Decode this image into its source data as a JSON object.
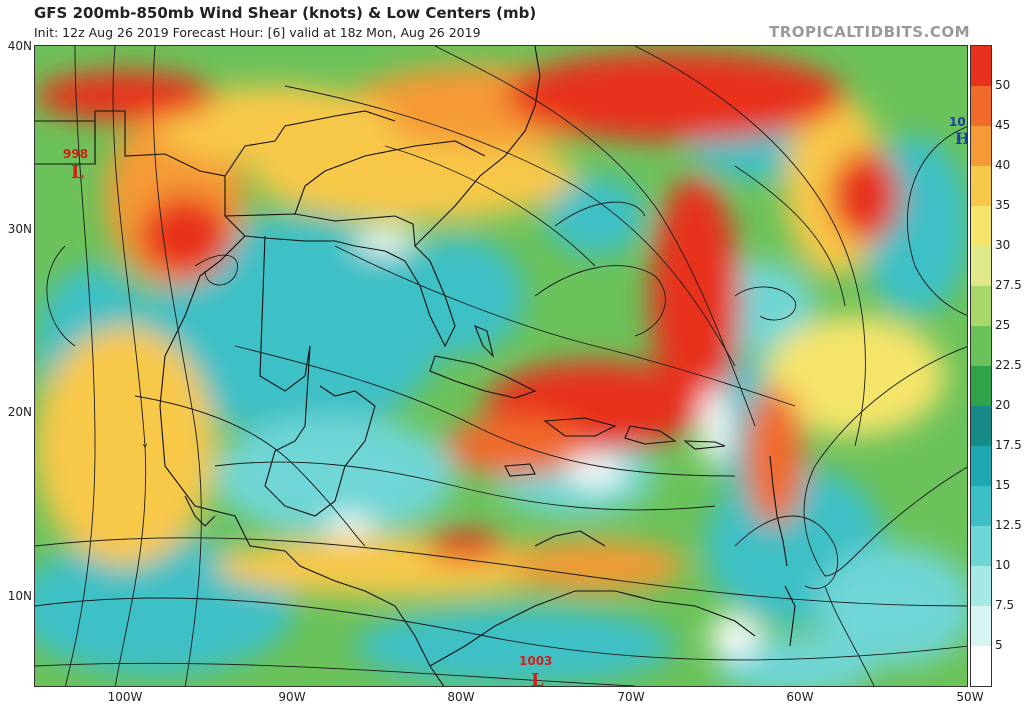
{
  "header": {
    "title": "GFS 200mb-850mb Wind Shear (knots) & Low Centers (mb)",
    "subtitle": "Init: 12z Aug 26 2019   Forecast Hour: [6]   valid at 18z Mon, Aug 26 2019",
    "brand": "TROPICALTIDBITS.COM"
  },
  "axes": {
    "lat_labels": [
      "40N",
      "30N",
      "20N",
      "10N"
    ],
    "lon_labels": [
      "100W",
      "90W",
      "80W",
      "70W",
      "60W",
      "50W"
    ]
  },
  "colorbar": {
    "labels": [
      "50",
      "45",
      "40",
      "35",
      "30",
      "27.5",
      "25",
      "22.5",
      "20",
      "17.5",
      "15",
      "12.5",
      "10",
      "7.5",
      "5"
    ],
    "colors": [
      "#e8321e",
      "#f06a2a",
      "#f59a36",
      "#f8c84a",
      "#f5e46a",
      "#dfe98a",
      "#a9d86a",
      "#6cc25a",
      "#2ea34a",
      "#158a86",
      "#1fa7b2",
      "#3cc0c6",
      "#6fd6d6",
      "#a6e8e6",
      "#d6f5f3",
      "#ffffff"
    ]
  },
  "lows": [
    {
      "value": "998",
      "symbol": "L"
    },
    {
      "value": "1003",
      "symbol": "L"
    },
    {
      "value": "10",
      "symbol": "H"
    }
  ],
  "colors": {
    "land_outline": "#111111",
    "streamline": "#1a1a1a",
    "low_marker": "#d0201a",
    "high_marker": "#1f3fa8"
  }
}
